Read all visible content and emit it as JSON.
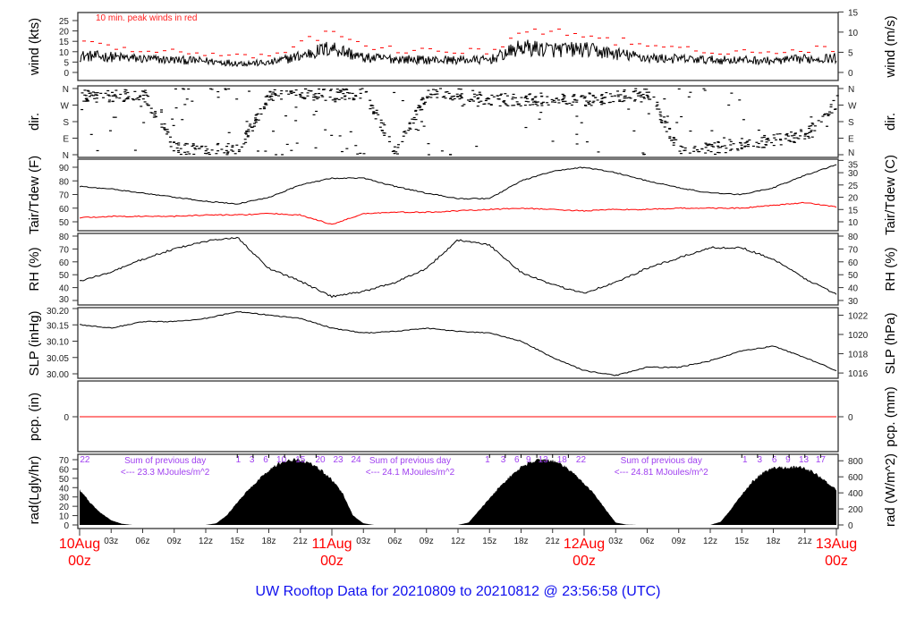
{
  "title": "UW Rooftop Data for 20210809  to  20210812 @ 23:56:58  (UTC)",
  "colors": {
    "main": "#000000",
    "peak": "#ff0000",
    "dewpoint": "#ff0000",
    "annotation": "#a040f0",
    "title": "#1010ee",
    "day_label": "#ff0000"
  },
  "wind_note": "10 min. peak winds in red",
  "chart_data": [
    {
      "type": "line",
      "name": "wind",
      "ylabel": "wind (kts)",
      "ylabel_right": "wind (m/s)",
      "ylim": [
        0,
        25
      ],
      "yticks": [
        0,
        5,
        10,
        15,
        20,
        25
      ],
      "yticks_right": [
        0,
        5,
        10,
        15
      ],
      "x_hours": [
        0,
        3,
        6,
        9,
        12,
        15,
        18,
        21,
        24,
        27,
        30,
        33,
        36,
        39,
        42,
        45,
        48,
        51,
        54,
        57,
        60,
        63,
        66,
        69,
        72
      ],
      "series": [
        {
          "name": "mean wind (kts)",
          "values": [
            8,
            7.5,
            6.5,
            6,
            5.5,
            4.5,
            4.5,
            8,
            12,
            7,
            6.5,
            6,
            6,
            6,
            12,
            11,
            11,
            9,
            7,
            6.5,
            6,
            6,
            5.5,
            6.5,
            7
          ]
        },
        {
          "name": "10 min. peak winds",
          "factor_of_mean": 1.6
        }
      ]
    },
    {
      "type": "scatter",
      "name": "direction",
      "ylabel": "dir.",
      "ylabel_right": "dir.",
      "yticks": [
        "N",
        "E",
        "S",
        "W",
        "N"
      ],
      "ylim": [
        0,
        360
      ],
      "x_hours": [
        0,
        3,
        6,
        9,
        12,
        15,
        18,
        21,
        24,
        27,
        30,
        33,
        36,
        39,
        42,
        45,
        48,
        51,
        54,
        57,
        60,
        63,
        66,
        69,
        72
      ],
      "dominant_deg": [
        320,
        320,
        330,
        30,
        30,
        25,
        330,
        330,
        320,
        335,
        20,
        330,
        330,
        300,
        300,
        300,
        300,
        310,
        340,
        20,
        30,
        60,
        80,
        110,
        290
      ]
    },
    {
      "type": "line",
      "name": "temperature",
      "ylabel": "Tair/Tdew (F)",
      "ylabel_right": "Tair/Tdew (C)",
      "ylim": [
        45,
        95
      ],
      "yticks": [
        50,
        60,
        70,
        80,
        90
      ],
      "yticks_right": [
        10,
        15,
        20,
        25,
        30,
        35
      ],
      "x_hours": [
        0,
        3,
        6,
        9,
        12,
        15,
        18,
        21,
        24,
        27,
        30,
        33,
        36,
        39,
        42,
        45,
        48,
        51,
        54,
        57,
        60,
        63,
        66,
        69,
        72
      ],
      "series": [
        {
          "name": "Tair",
          "values": [
            76,
            74,
            71,
            68,
            65,
            63,
            68,
            77,
            82,
            82,
            76,
            71,
            67,
            67,
            80,
            87,
            90,
            86,
            80,
            75,
            71,
            70,
            75,
            84,
            92
          ]
        },
        {
          "name": "Tdew",
          "values": [
            53,
            54,
            54,
            54,
            55,
            55,
            56,
            55,
            48,
            56,
            57,
            57,
            58,
            59,
            60,
            59,
            58,
            59,
            59,
            60,
            60,
            60,
            62,
            64,
            61
          ]
        }
      ]
    },
    {
      "type": "line",
      "name": "rh",
      "ylabel": "RH (%)",
      "ylabel_right": "RH (%)",
      "ylim": [
        30,
        80
      ],
      "yticks": [
        30,
        40,
        50,
        60,
        70,
        80
      ],
      "x_hours": [
        0,
        3,
        6,
        9,
        12,
        15,
        18,
        21,
        24,
        27,
        30,
        33,
        36,
        39,
        42,
        45,
        48,
        51,
        54,
        57,
        60,
        63,
        66,
        69,
        72
      ],
      "values": [
        45,
        52,
        62,
        70,
        76,
        79,
        55,
        45,
        33,
        37,
        44,
        55,
        77,
        73,
        52,
        42,
        36,
        44,
        55,
        63,
        71,
        71,
        62,
        47,
        35
      ]
    },
    {
      "type": "line",
      "name": "slp",
      "ylabel": "SLP (inHg)",
      "ylabel_right": "SLP (hPa)",
      "ylim": [
        30.0,
        30.2
      ],
      "yticks": [
        "30.00",
        "30.05",
        "30.10",
        "30.15",
        "30.20"
      ],
      "yticks_right": [
        1016,
        1018,
        1020,
        1022
      ],
      "x_hours": [
        0,
        3,
        6,
        9,
        12,
        15,
        18,
        21,
        24,
        27,
        30,
        33,
        36,
        39,
        42,
        45,
        48,
        51,
        54,
        57,
        60,
        63,
        66,
        69,
        72
      ],
      "values": [
        30.15,
        30.14,
        30.16,
        30.16,
        30.17,
        30.19,
        30.18,
        30.17,
        30.14,
        30.125,
        30.13,
        30.14,
        30.13,
        30.125,
        30.1,
        30.05,
        30.01,
        29.995,
        30.02,
        30.02,
        30.04,
        30.07,
        30.085,
        30.05,
        30.01
      ]
    },
    {
      "type": "line",
      "name": "precip",
      "ylabel": "pcp. (in)",
      "ylabel_right": "pcp. (mm)",
      "yticks": [
        0
      ],
      "yticks_right": [
        0
      ],
      "values_constant": 0
    },
    {
      "type": "area",
      "name": "radiation",
      "ylabel": "rad(Lgly/hr)",
      "ylabel_right": "rad (W/m^2)",
      "ylim": [
        0,
        70
      ],
      "yticks": [
        0,
        10,
        20,
        30,
        40,
        50,
        60,
        70
      ],
      "yticks_right": [
        0,
        200,
        400,
        600,
        800
      ],
      "x_hours_step": 1,
      "values_wm2": [
        440,
        280,
        150,
        60,
        15,
        0,
        0,
        0,
        0,
        0,
        0,
        0,
        0,
        20,
        120,
        280,
        430,
        560,
        680,
        770,
        815,
        810,
        760,
        680,
        560,
        400,
        120,
        20,
        0,
        0,
        0,
        0,
        0,
        0,
        0,
        0,
        0,
        30,
        180,
        330,
        480,
        610,
        720,
        790,
        820,
        800,
        740,
        640,
        520,
        380,
        200,
        30,
        5,
        0,
        0,
        0,
        0,
        0,
        0,
        0,
        0,
        40,
        200,
        380,
        540,
        650,
        710,
        720,
        720,
        710,
        640,
        540,
        440
      ],
      "annotations": [
        {
          "markers": [
            {
              "hour": 0.5,
              "label": "22"
            }
          ]
        },
        {
          "sum_title": "Sum of previous day",
          "sum_text": "<--- 23.3 MJoules/m^2",
          "at_hour": 7.8
        },
        {
          "markers": [
            {
              "hour": 15.1,
              "label": "1"
            },
            {
              "hour": 16.4,
              "label": "3"
            },
            {
              "hour": 17.7,
              "label": "6"
            },
            {
              "hour": 19.2,
              "label": "10"
            },
            {
              "hour": 21.0,
              "label": "15"
            },
            {
              "hour": 22.9,
              "label": "20"
            },
            {
              "hour": 24.6,
              "label": "23"
            },
            {
              "hour": 26.3,
              "label": "24"
            }
          ]
        },
        {
          "sum_title": "Sum of previous day",
          "sum_text": "<--- 24.1 MJoules/m^2",
          "at_hour": 31.1
        },
        {
          "markers": [
            {
              "hour": 38.8,
              "label": "1"
            },
            {
              "hour": 40.3,
              "label": "3"
            },
            {
              "hour": 41.6,
              "label": "6"
            },
            {
              "hour": 42.7,
              "label": "9"
            },
            {
              "hour": 44.1,
              "label": "13"
            },
            {
              "hour": 45.9,
              "label": "18"
            },
            {
              "hour": 47.7,
              "label": "22"
            }
          ]
        },
        {
          "sum_title": "Sum of previous day",
          "sum_text": "<--- 24.81 MJoules/m^2",
          "at_hour": 55.0
        },
        {
          "markers": [
            {
              "hour": 63.3,
              "label": "1"
            },
            {
              "hour": 64.7,
              "label": "3"
            },
            {
              "hour": 66.1,
              "label": "6"
            },
            {
              "hour": 67.4,
              "label": "9"
            },
            {
              "hour": 68.9,
              "label": "13"
            },
            {
              "hour": 70.5,
              "label": "17"
            }
          ]
        }
      ]
    }
  ],
  "x_axis": {
    "hour_ticks": [
      "03z",
      "06z",
      "09z",
      "12z",
      "15z",
      "18z",
      "21z"
    ],
    "days": [
      {
        "date": "10Aug",
        "time": "00z"
      },
      {
        "date": "11Aug",
        "time": "00z"
      },
      {
        "date": "12Aug",
        "time": "00z"
      },
      {
        "date": "13Aug",
        "time": "00z"
      }
    ]
  }
}
